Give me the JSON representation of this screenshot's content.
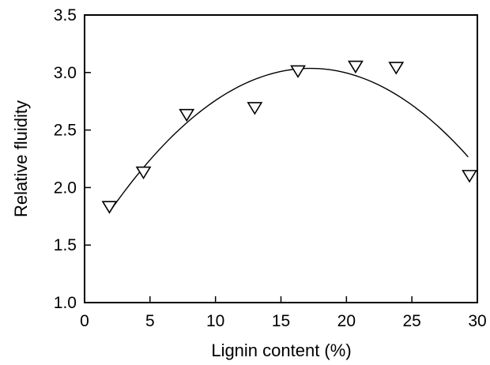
{
  "chart_data": {
    "type": "scatter",
    "title": "",
    "xlabel": "Lignin content (%)",
    "ylabel": "Relative fluidity",
    "xlim": [
      0,
      30
    ],
    "ylim": [
      1.0,
      3.5
    ],
    "x_ticks": [
      "0",
      "5",
      "10",
      "15",
      "20",
      "25",
      "30"
    ],
    "y_ticks": [
      "1.0",
      "1.5",
      "2.0",
      "2.5",
      "3.0",
      "3.5"
    ],
    "grid": false,
    "legend": "none",
    "marker": "open-down-triangle",
    "series": [
      {
        "x": [
          1.9,
          4.5,
          7.8,
          13.0,
          16.3,
          20.7,
          23.8,
          29.4
        ],
        "y": [
          1.84,
          2.14,
          2.64,
          2.7,
          3.02,
          3.06,
          3.05,
          2.11
        ]
      }
    ],
    "fit_curve": {
      "kind": "quadratic",
      "x": [
        1.9,
        7.0,
        12.0,
        17.5,
        22.0,
        25.5,
        29.3
      ],
      "y": [
        1.8,
        2.47,
        2.87,
        3.03,
        2.94,
        2.7,
        2.24
      ]
    },
    "colors": {
      "stroke": "#000000",
      "background": "#ffffff"
    }
  }
}
